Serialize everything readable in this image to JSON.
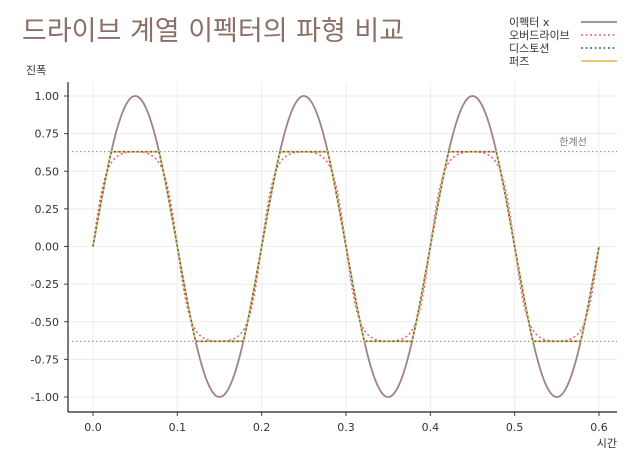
{
  "chart_data": {
    "type": "line",
    "title": "드라이브 계열 이펙터의 파형 비교",
    "xlabel": "시간",
    "ylabel": "진폭",
    "xlim": [
      -0.03,
      0.62
    ],
    "ylim": [
      -1.1,
      1.1
    ],
    "xticks": [
      "0.0",
      "0.1",
      "0.2",
      "0.3",
      "0.4",
      "0.5",
      "0.6"
    ],
    "yticks": [
      "1.00",
      "0.75",
      "0.50",
      "0.25",
      "0.00",
      "-0.25",
      "-0.50",
      "-0.75",
      "-1.00"
    ],
    "grid": true,
    "legend_position": "top-right",
    "frequency_hz": 5,
    "threshold": 0.63,
    "threshold_label": "한계선",
    "series": [
      {
        "name": "이펙터 x",
        "function": "sin",
        "amplitude": 1.0,
        "color": "#9c8580",
        "style": "solid"
      },
      {
        "name": "오버드라이브",
        "function": "tanh",
        "gain": 2.0,
        "color": "#e0607e",
        "style": "dotted"
      },
      {
        "name": "디스토션",
        "function": "hard_clip",
        "limit": 0.63,
        "color": "#3e6b6b",
        "style": "dotted"
      },
      {
        "name": "퍼즈",
        "function": "hard_clip",
        "limit": 0.63,
        "color": "#f2bd5c",
        "style": "solid"
      }
    ]
  }
}
